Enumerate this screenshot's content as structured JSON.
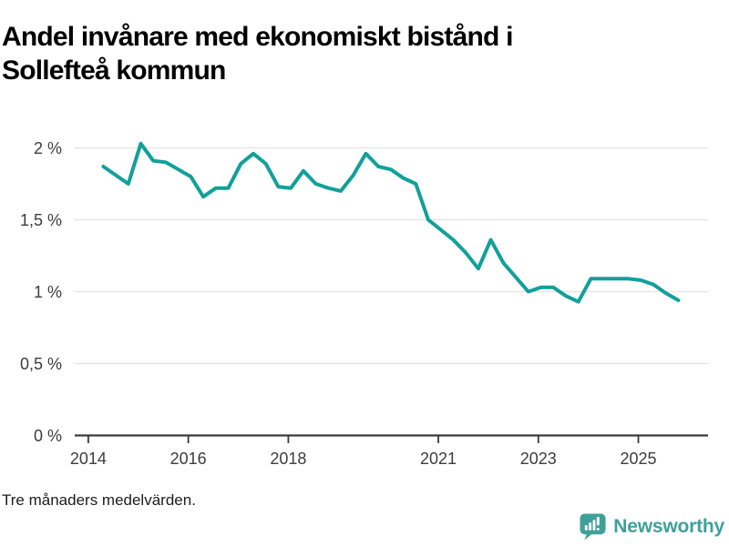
{
  "title_lines": [
    "Andel invånare med ekonomiskt bistånd i",
    "Sollefteå kommun"
  ],
  "footnote": "Tre månaders medelvärden.",
  "branding": {
    "name": "Newsworthy",
    "icon": "newsworthy-speech-bubble-bar-chart",
    "color": "#3fa09a"
  },
  "colors": {
    "line": "#12a09a",
    "grid": "#e2e2e2",
    "axis": "#3a3a3a",
    "tick_label": "#3d3d3d"
  },
  "chart_data": {
    "type": "line",
    "title": "Andel invånare med ekonomiskt bistånd i Sollefteå kommun",
    "subtitle": "Tre månaders medelvärden.",
    "unit": "%",
    "grid": "horizontal",
    "legend": "none",
    "xlim": [
      2013.73,
      2026.4
    ],
    "ylim": [
      0,
      2.13
    ],
    "x_ticks": [
      {
        "year": 2014,
        "label": "2014"
      },
      {
        "year": 2016,
        "label": "2016"
      },
      {
        "year": 2018,
        "label": "2018"
      },
      {
        "year": 2021,
        "label": "2021"
      },
      {
        "year": 2023,
        "label": "2023"
      },
      {
        "year": 2025,
        "label": "2025"
      }
    ],
    "y_ticks": [
      {
        "value": 2,
        "label": "2 %"
      },
      {
        "value": 1.5,
        "label": "1,5 %"
      },
      {
        "value": 1,
        "label": "1 %"
      },
      {
        "value": 0.5,
        "label": "0,5 %"
      },
      {
        "value": 0,
        "label": "0 %"
      }
    ],
    "series": [
      {
        "name": "Sollefteå kommun",
        "x": [
          2014.3,
          2014.55,
          2014.8,
          2015.05,
          2015.3,
          2015.55,
          2015.8,
          2016.05,
          2016.3,
          2016.55,
          2016.8,
          2017.05,
          2017.3,
          2017.55,
          2017.8,
          2018.05,
          2018.3,
          2018.55,
          2018.8,
          2019.05,
          2019.3,
          2019.55,
          2019.8,
          2020.05,
          2020.3,
          2020.55,
          2020.8,
          2021.05,
          2021.3,
          2021.55,
          2021.8,
          2022.05,
          2022.3,
          2022.55,
          2022.8,
          2023.05,
          2023.3,
          2023.55,
          2023.8,
          2024.05,
          2024.3,
          2024.55,
          2024.8,
          2025.05,
          2025.3,
          2025.55,
          2025.8
        ],
        "values": [
          1.87,
          1.81,
          1.75,
          2.03,
          1.91,
          1.9,
          1.85,
          1.8,
          1.66,
          1.72,
          1.72,
          1.89,
          1.96,
          1.89,
          1.73,
          1.72,
          1.84,
          1.75,
          1.72,
          1.7,
          1.81,
          1.96,
          1.87,
          1.85,
          1.79,
          1.75,
          1.5,
          1.43,
          1.36,
          1.27,
          1.16,
          1.36,
          1.2,
          1.1,
          1.0,
          1.03,
          1.03,
          0.97,
          0.93,
          1.09,
          1.09,
          1.09,
          1.09,
          1.08,
          1.05,
          0.99,
          0.94
        ]
      }
    ]
  }
}
